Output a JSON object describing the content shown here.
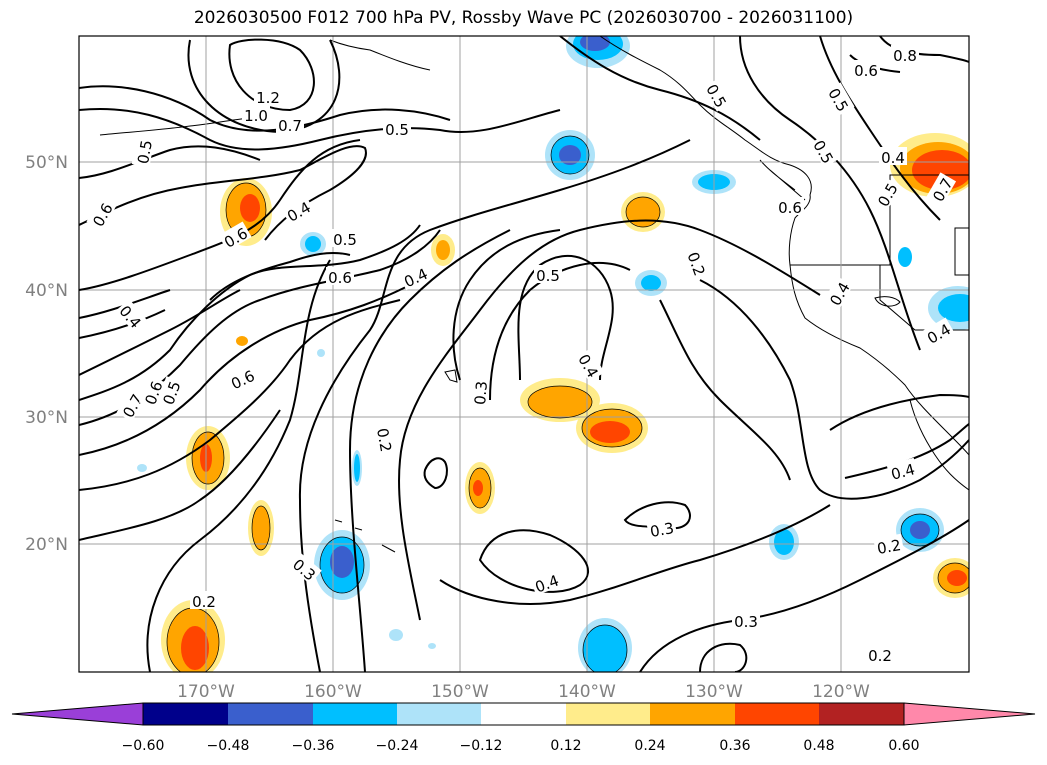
{
  "title": "2026030500 F012 700 hPa PV, Rossby Wave PC (2026030700 - 2026031100)",
  "lat_labels": [
    "50°N",
    "40°N",
    "30°N",
    "20°N"
  ],
  "lon_labels": [
    "170°W",
    "160°W",
    "150°W",
    "140°W",
    "130°W",
    "120°W"
  ],
  "colorbar": {
    "ticks": [
      "−0.60",
      "−0.48",
      "−0.36",
      "−0.24",
      "−0.12",
      "0.12",
      "0.24",
      "0.36",
      "0.48",
      "0.60"
    ],
    "colors": [
      "#9a3fd8",
      "#00008b",
      "#3a5fcd",
      "#00bfff",
      "#aee3f9",
      "#ffffff",
      "#ffec8b",
      "#ffa500",
      "#ff4500",
      "#b22222",
      "#ff88aa"
    ]
  },
  "contour_labels": [
    "1.2",
    "1.0",
    "0.7",
    "0.5",
    "0.5",
    "0.6",
    "0.6",
    "0.4",
    "0.5",
    "0.6",
    "0.4",
    "0.5",
    "0.4",
    "0.7",
    "0.6",
    "0.5",
    "0.6",
    "0.4",
    "0.3",
    "0.4",
    "0.2",
    "0.2",
    "0.3",
    "0.4",
    "0.3",
    "0.2",
    "0.2",
    "0.3",
    "0.2",
    "0.4",
    "0.5",
    "0.6",
    "0.5",
    "0.7",
    "0.8",
    "0.6",
    "0.4",
    "0.5",
    "0.4",
    "0.5"
  ],
  "features": {
    "contour_color": "#000000",
    "coastline_color": "#000000",
    "grid_color": "#a0a0a0"
  }
}
